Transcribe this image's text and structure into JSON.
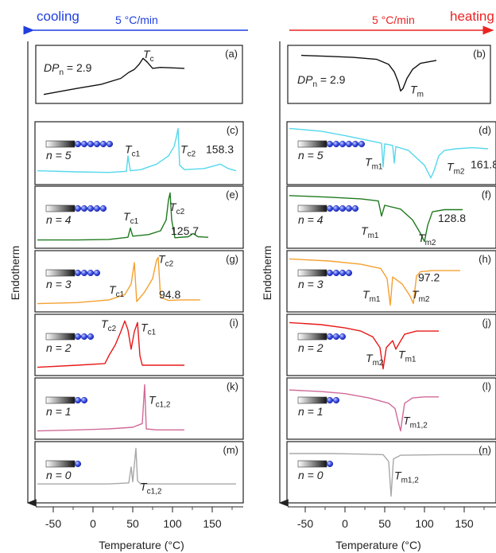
{
  "header": {
    "left_label": "cooling",
    "left_rate": "5 °C/min",
    "right_label": "heating",
    "right_rate": "5 °C/min"
  },
  "colors": {
    "cooling": "#1f3fe0",
    "heating": "#ee2222",
    "n5": "#55d8ec",
    "n4": "#1f7a1f",
    "n3": "#f5a030",
    "n2": "#e81818",
    "n1": "#d06a98",
    "n0": "#a8a8a8",
    "dp": "#111111",
    "bead": "#2b3dd6"
  },
  "y_axis_label": "Endotherm",
  "chart_data": [
    {
      "type": "line",
      "panel": "cooling",
      "x_range": [
        -70,
        180
      ],
      "xticks": [
        -50,
        0,
        50,
        100,
        150
      ],
      "xlabel": "Temperature (°C)",
      "ylabel": "Endotherm",
      "grid": false
    },
    {
      "type": "line",
      "panel": "heating",
      "x_range": [
        -70,
        180
      ],
      "xticks": [
        -50,
        0,
        50,
        100,
        150
      ],
      "xlabel": "Temperature (°C)",
      "ylabel": "Endotherm",
      "grid": false
    }
  ],
  "subplots": [
    {
      "id": "a",
      "side": "left",
      "tag": "(a)",
      "color_key": "dp",
      "x_end": 115,
      "label_pre": "DP",
      "label_sub": "n",
      "label_post": " = 2.9",
      "peaks": [
        {
          "sym": "T",
          "sub": "c",
          "x": 63,
          "ly": 0.22
        }
      ],
      "extra": []
    },
    {
      "id": "b",
      "side": "right",
      "tag": "(b)",
      "color_key": "dp",
      "x_end": 115,
      "label_pre": "DP",
      "label_sub": "n",
      "label_post": " = 2.9",
      "peaks": [
        {
          "sym": "T",
          "sub": "m",
          "x": 82,
          "ly": 0.83
        }
      ],
      "extra": []
    },
    {
      "id": "c",
      "side": "left",
      "tag": "(c)",
      "color_key": "n5",
      "beads": 6,
      "n_text": "n = 5",
      "x_end": 180,
      "peaks": [
        {
          "sym": "T",
          "sub": "c1",
          "x": 40,
          "ly": 0.5
        },
        {
          "sym": "T",
          "sub": "c2",
          "x": 110,
          "ly": 0.5
        }
      ],
      "extra": [
        {
          "text": "158.3",
          "x": 142,
          "ly": 0.5
        }
      ]
    },
    {
      "id": "d",
      "side": "right",
      "tag": "(d)",
      "color_key": "n5",
      "beads": 6,
      "n_text": "n = 5",
      "x_end": 180,
      "peaks": [
        {
          "sym": "T",
          "sub": "m1",
          "x": 25,
          "ly": 0.7
        },
        {
          "sym": "T",
          "sub": "m2",
          "x": 128,
          "ly": 0.78
        }
      ],
      "extra": [
        {
          "text": "161.8",
          "x": 158,
          "ly": 0.74
        }
      ]
    },
    {
      "id": "e",
      "side": "left",
      "tag": "(e)",
      "color_key": "n4",
      "beads": 5,
      "n_text": "n = 4",
      "x_end": 145,
      "peaks": [
        {
          "sym": "T",
          "sub": "c1",
          "x": 38,
          "ly": 0.55
        },
        {
          "sym": "T",
          "sub": "c2",
          "x": 96,
          "ly": 0.4
        }
      ],
      "extra": [
        {
          "text": "125.7",
          "x": 98,
          "ly": 0.78
        }
      ]
    },
    {
      "id": "f",
      "side": "right",
      "tag": "(f)",
      "color_key": "n4",
      "beads": 5,
      "n_text": "n = 4",
      "x_end": 148,
      "peaks": [
        {
          "sym": "T",
          "sub": "m1",
          "x": 20,
          "ly": 0.78
        },
        {
          "sym": "T",
          "sub": "m2",
          "x": 92,
          "ly": 0.9
        }
      ],
      "extra": [
        {
          "text": "128.8",
          "x": 117,
          "ly": 0.58
        }
      ]
    },
    {
      "id": "g",
      "side": "left",
      "tag": "(g)",
      "color_key": "n3",
      "beads": 4,
      "n_text": "n = 3",
      "x_end": 135,
      "peaks": [
        {
          "sym": "T",
          "sub": "c1",
          "x": 20,
          "ly": 0.7
        },
        {
          "sym": "T",
          "sub": "c2",
          "x": 82,
          "ly": 0.2
        }
      ],
      "extra": [
        {
          "text": "94.8",
          "x": 83,
          "ly": 0.78
        }
      ]
    },
    {
      "id": "h",
      "side": "right",
      "tag": "(h)",
      "color_key": "n3",
      "beads": 4,
      "n_text": "n = 3",
      "x_end": 145,
      "peaks": [
        {
          "sym": "T",
          "sub": "m1",
          "x": 22,
          "ly": 0.78
        },
        {
          "sym": "T",
          "sub": "m2",
          "x": 84,
          "ly": 0.78
        }
      ],
      "extra": [
        {
          "text": "97.2",
          "x": 92,
          "ly": 0.5
        }
      ]
    },
    {
      "id": "i",
      "side": "left",
      "tag": "(i)",
      "color_key": "n2",
      "beads": 3,
      "n_text": "n = 2",
      "x_end": 115,
      "peaks": [
        {
          "sym": "T",
          "sub": "c2",
          "x": 10,
          "ly": 0.22
        },
        {
          "sym": "T",
          "sub": "c1",
          "x": 60,
          "ly": 0.28
        }
      ],
      "extra": []
    },
    {
      "id": "j",
      "side": "right",
      "tag": "(j)",
      "color_key": "n2",
      "beads": 3,
      "n_text": "n = 2",
      "x_end": 118,
      "peaks": [
        {
          "sym": "T",
          "sub": "m2",
          "x": 26,
          "ly": 0.78
        },
        {
          "sym": "T",
          "sub": "m1",
          "x": 67,
          "ly": 0.72
        }
      ],
      "extra": []
    },
    {
      "id": "k",
      "side": "left",
      "tag": "(k)",
      "color_key": "n1",
      "beads": 2,
      "n_text": "n = 1",
      "x_end": 115,
      "peaks": [
        {
          "sym": "T",
          "sub": "c1,2",
          "x": 70,
          "ly": 0.42
        }
      ],
      "extra": []
    },
    {
      "id": "l",
      "side": "right",
      "tag": "(l)",
      "color_key": "n1",
      "beads": 2,
      "n_text": "n = 1",
      "x_end": 118,
      "peaks": [
        {
          "sym": "T",
          "sub": "m1,2",
          "x": 73,
          "ly": 0.76
        }
      ],
      "extra": []
    },
    {
      "id": "m",
      "side": "left",
      "tag": "(m)",
      "color_key": "n0",
      "beads": 1,
      "n_text": "n = 0",
      "x_end": 180,
      "peaks": [
        {
          "sym": "T",
          "sub": "c1,2",
          "x": 59,
          "ly": 0.8
        }
      ],
      "extra": []
    },
    {
      "id": "n",
      "side": "right",
      "tag": "(n)",
      "color_key": "n0",
      "beads": 1,
      "n_text": "n = 0",
      "x_end": 180,
      "peaks": [
        {
          "sym": "T",
          "sub": "m1,2",
          "x": 62,
          "ly": 0.62
        }
      ],
      "extra": []
    }
  ]
}
